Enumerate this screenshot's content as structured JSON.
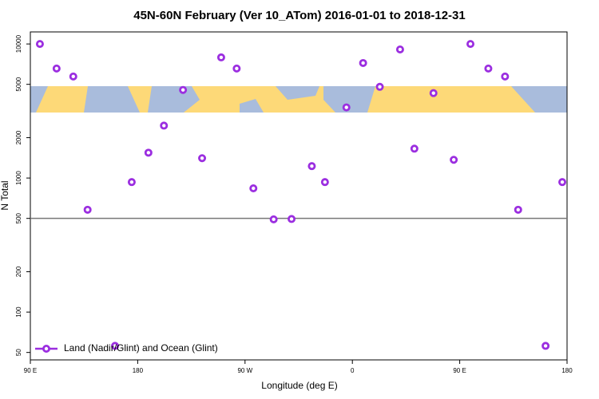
{
  "chart_data": {
    "type": "scatter",
    "title": "45N-60N February (Ver 10_ATom)   2016-01-01 to 2018-12-31",
    "x_label": "Longitude (deg E)",
    "y_label": "N Total",
    "log_y": true,
    "legend": "lower left",
    "hline": 500,
    "xlim": [
      90,
      540
    ],
    "xticks": [
      {
        "value": 90,
        "label": "90 E"
      },
      180,
      {
        "value": 270,
        "label": "90 W"
      },
      {
        "value": 360,
        "label": "0"
      },
      {
        "value": 450,
        "label": "90 E"
      },
      {
        "value": 540,
        "label": "180"
      }
    ],
    "ylim": [
      44,
      12300
    ],
    "yticks": [
      50,
      100,
      200,
      500,
      1000,
      2000,
      5000,
      10000
    ],
    "series": [
      {
        "name": "Land (Nadir/Glint) and Ocean (Glint)",
        "color": "#9b2ee0",
        "x": [
          98,
          112,
          126,
          138,
          161,
          175,
          189,
          202,
          218,
          234,
          250,
          263,
          277,
          294,
          309,
          326,
          337,
          355,
          369,
          383,
          400,
          412,
          428,
          445,
          459,
          474,
          488,
          499,
          522,
          536
        ],
        "values": [
          10000,
          6560,
          5720,
          580,
          56,
          933,
          1546,
          2460,
          4540,
          1406,
          7940,
          6560,
          838,
          492,
          495,
          1227,
          933,
          3365,
          7210,
          4790,
          9100,
          1656,
          4300,
          1368,
          10000,
          6560,
          5720,
          580,
          56,
          933
        ]
      }
    ]
  }
}
